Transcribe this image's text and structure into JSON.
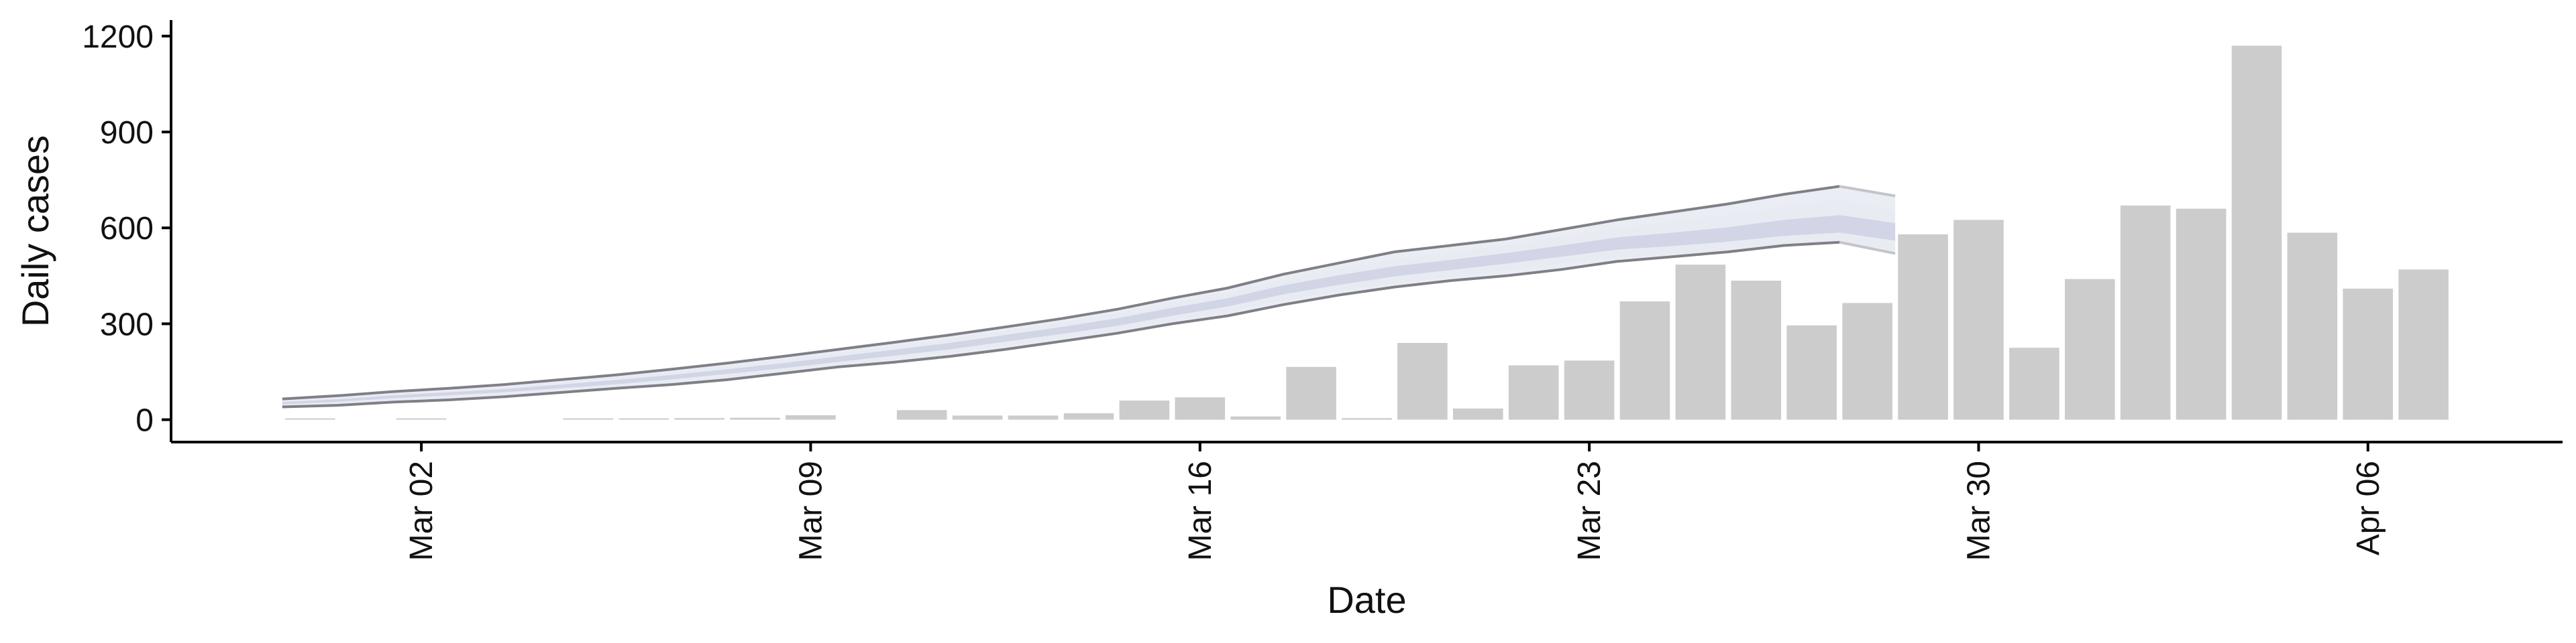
{
  "chart_data": {
    "type": "bar",
    "xlabel": "Date",
    "ylabel": "Daily cases",
    "ylim": [
      -70,
      1250
    ],
    "yticks": [
      0,
      300,
      600,
      900,
      1200
    ],
    "xtick_labels": [
      "Mar 02",
      "Mar 09",
      "Mar 16",
      "Mar 23",
      "Mar 30",
      "Apr 06"
    ],
    "xtick_days": [
      2,
      9,
      16,
      23,
      30,
      37
    ],
    "xlim_days": [
      -2.5,
      40.5
    ],
    "grid": false,
    "legend": "none",
    "colors": {
      "bars": "#cccccc",
      "band_outer": "#e9ebf3",
      "band_inner": "#d2d5e6",
      "band_edge": "#7f7f86",
      "band_edge_forecast": "#c4c4ca",
      "axis": "#000000"
    },
    "bars": {
      "days": [
        0,
        1,
        2,
        3,
        4,
        5,
        6,
        7,
        8,
        9,
        10,
        11,
        12,
        13,
        14,
        15,
        16,
        17,
        18,
        19,
        20,
        21,
        22,
        23,
        24,
        25,
        26,
        27,
        28,
        29,
        30,
        31,
        32,
        33,
        34,
        35,
        36,
        37,
        38
      ],
      "values": [
        3,
        0,
        3,
        0,
        0,
        3,
        3,
        5,
        6,
        14,
        0,
        30,
        13,
        13,
        20,
        60,
        70,
        10,
        165,
        5,
        240,
        35,
        170,
        185,
        370,
        485,
        435,
        295,
        365,
        580,
        625,
        225,
        440,
        670,
        660,
        1170,
        585,
        410,
        470
      ]
    },
    "estimate_band": {
      "days": [
        -0.5,
        0.5,
        1.5,
        2.5,
        3.5,
        4.5,
        5.5,
        6.5,
        7.5,
        8.5,
        9.5,
        10.5,
        11.5,
        12.5,
        13.5,
        14.5,
        15.5,
        16.5,
        17.5,
        18.5,
        19.5,
        20.5,
        21.5,
        22.5,
        23.5,
        24.5,
        25.5,
        26.5,
        27.5,
        28.5
      ],
      "upper": [
        65,
        75,
        88,
        98,
        110,
        125,
        140,
        158,
        177,
        198,
        220,
        242,
        265,
        290,
        316,
        345,
        380,
        412,
        455,
        490,
        525,
        545,
        565,
        595,
        625,
        650,
        675,
        705,
        730,
        700
      ],
      "outer_upper": [
        60,
        70,
        82,
        92,
        103,
        118,
        133,
        150,
        168,
        188,
        209,
        230,
        253,
        278,
        304,
        332,
        366,
        397,
        437,
        472,
        503,
        523,
        545,
        572,
        600,
        620,
        642,
        668,
        690,
        655
      ],
      "inner_upper": [
        55,
        64,
        76,
        86,
        96,
        110,
        124,
        140,
        158,
        177,
        198,
        219,
        240,
        265,
        290,
        317,
        350,
        380,
        420,
        452,
        480,
        500,
        521,
        545,
        570,
        585,
        602,
        625,
        640,
        615
      ],
      "inner_lower": [
        48,
        56,
        67,
        76,
        86,
        98,
        111,
        126,
        143,
        161,
        181,
        200,
        220,
        244,
        268,
        293,
        325,
        354,
        392,
        422,
        448,
        468,
        488,
        510,
        532,
        543,
        557,
        575,
        585,
        560
      ],
      "outer_lower": [
        43,
        50,
        61,
        70,
        79,
        91,
        103,
        117,
        133,
        151,
        170,
        188,
        208,
        230,
        253,
        277,
        308,
        337,
        374,
        403,
        427,
        447,
        467,
        488,
        508,
        517,
        530,
        547,
        555,
        530
      ],
      "lower": [
        40,
        45,
        55,
        62,
        72,
        85,
        98,
        110,
        125,
        145,
        165,
        180,
        198,
        220,
        245,
        270,
        300,
        325,
        360,
        390,
        415,
        435,
        450,
        470,
        495,
        510,
        525,
        545,
        555,
        520
      ]
    },
    "forecast_start_day": 27.5
  }
}
